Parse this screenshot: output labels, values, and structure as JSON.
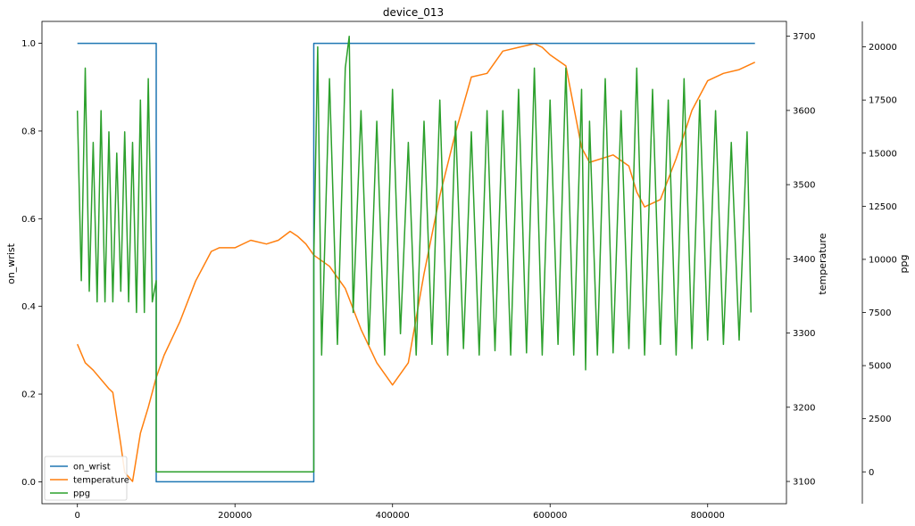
{
  "chart_data": {
    "type": "line",
    "title": "device_013",
    "xlabel": "",
    "x_ticks": [
      0,
      200000,
      400000,
      600000,
      800000
    ],
    "x_tick_labels": [
      "0",
      "200000",
      "400000",
      "600000",
      "800000"
    ],
    "xlim": [
      -45000,
      900000
    ],
    "grid": false,
    "legend_position": "lower-left",
    "axes": {
      "left": {
        "label": "on_wrist",
        "ylim": [
          -0.05,
          1.05
        ],
        "ticks": [
          0.0,
          0.2,
          0.4,
          0.6,
          0.8,
          1.0
        ],
        "tick_labels": [
          "0.0",
          "0.2",
          "0.4",
          "0.6",
          "0.8",
          "1.0"
        ]
      },
      "right": {
        "label": "temperature",
        "ylim": [
          3070,
          3720
        ],
        "ticks": [
          3100,
          3200,
          3300,
          3400,
          3500,
          3600,
          3700
        ],
        "tick_labels": [
          "3100",
          "3200",
          "3300",
          "3400",
          "3500",
          "3600",
          "3700"
        ]
      },
      "right_outer": {
        "label": "ppg",
        "ylim": [
          -1500,
          21200
        ],
        "ticks": [
          0,
          2500,
          5000,
          7500,
          10000,
          12500,
          15000,
          17500,
          20000
        ],
        "tick_labels": [
          "0",
          "2500",
          "5000",
          "7500",
          "10000",
          "12500",
          "15000",
          "17500",
          "20000"
        ]
      }
    },
    "series": [
      {
        "name": "on_wrist",
        "axis": "left",
        "color": "#1f77b4",
        "x": [
          0,
          100000,
          100000,
          300000,
          300000,
          860000
        ],
        "y": [
          1,
          1,
          0,
          0,
          1,
          1
        ]
      },
      {
        "name": "temperature",
        "axis": "right",
        "color": "#ff7f0e",
        "x": [
          0,
          10000,
          20000,
          40000,
          45000,
          55000,
          60000,
          70000,
          80000,
          90000,
          100000,
          110000,
          130000,
          150000,
          170000,
          180000,
          200000,
          220000,
          240000,
          255000,
          270000,
          280000,
          290000,
          300000,
          320000,
          340000,
          360000,
          380000,
          400000,
          420000,
          440000,
          460000,
          480000,
          500000,
          520000,
          540000,
          560000,
          580000,
          590000,
          600000,
          620000,
          640000,
          650000,
          680000,
          700000,
          710000,
          720000,
          740000,
          760000,
          780000,
          800000,
          820000,
          840000,
          860000
        ],
        "y": [
          3285,
          3260,
          3250,
          3225,
          3220,
          3150,
          3112,
          3100,
          3165,
          3200,
          3240,
          3270,
          3315,
          3370,
          3410,
          3415,
          3415,
          3425,
          3420,
          3425,
          3437,
          3430,
          3420,
          3405,
          3390,
          3360,
          3305,
          3260,
          3230,
          3260,
          3380,
          3485,
          3570,
          3645,
          3650,
          3680,
          3685,
          3690,
          3685,
          3675,
          3660,
          3550,
          3530,
          3540,
          3525,
          3490,
          3470,
          3480,
          3535,
          3600,
          3640,
          3650,
          3655,
          3665
        ]
      },
      {
        "name": "ppg",
        "axis": "right_outer",
        "color": "#2ca02c",
        "x": [
          0,
          5000,
          10000,
          15000,
          20000,
          25000,
          30000,
          35000,
          40000,
          45000,
          50000,
          55000,
          60000,
          65000,
          70000,
          75000,
          80000,
          85000,
          90000,
          95000,
          100000,
          100000,
          300000,
          300000,
          305000,
          310000,
          320000,
          330000,
          340000,
          345000,
          350000,
          360000,
          370000,
          380000,
          390000,
          400000,
          410000,
          420000,
          430000,
          440000,
          450000,
          460000,
          470000,
          480000,
          490000,
          500000,
          510000,
          520000,
          530000,
          540000,
          550000,
          560000,
          570000,
          580000,
          590000,
          600000,
          610000,
          620000,
          630000,
          640000,
          645000,
          650000,
          660000,
          670000,
          680000,
          690000,
          700000,
          710000,
          720000,
          730000,
          740000,
          750000,
          760000,
          770000,
          780000,
          790000,
          800000,
          810000,
          820000,
          830000,
          840000,
          850000,
          855000
        ],
        "y": [
          17000,
          9000,
          19000,
          8500,
          15500,
          8000,
          17000,
          8000,
          16000,
          8000,
          15000,
          8500,
          16000,
          8000,
          15500,
          7500,
          17500,
          7500,
          18500,
          8000,
          9000,
          0,
          0,
          10000,
          20000,
          5500,
          18500,
          6000,
          19000,
          20500,
          7500,
          17000,
          6000,
          16500,
          5500,
          18000,
          6500,
          15500,
          5500,
          16500,
          6000,
          17500,
          5500,
          16500,
          5800,
          16000,
          5500,
          17000,
          5700,
          17000,
          5500,
          18000,
          5600,
          19000,
          5500,
          17500,
          6000,
          19000,
          5500,
          18000,
          4800,
          16500,
          5500,
          18500,
          5600,
          17000,
          5800,
          19000,
          5500,
          18000,
          6000,
          17500,
          5500,
          18500,
          5800,
          17500,
          6200,
          17000,
          6000,
          15500,
          6200,
          16000,
          7500
        ]
      }
    ]
  }
}
